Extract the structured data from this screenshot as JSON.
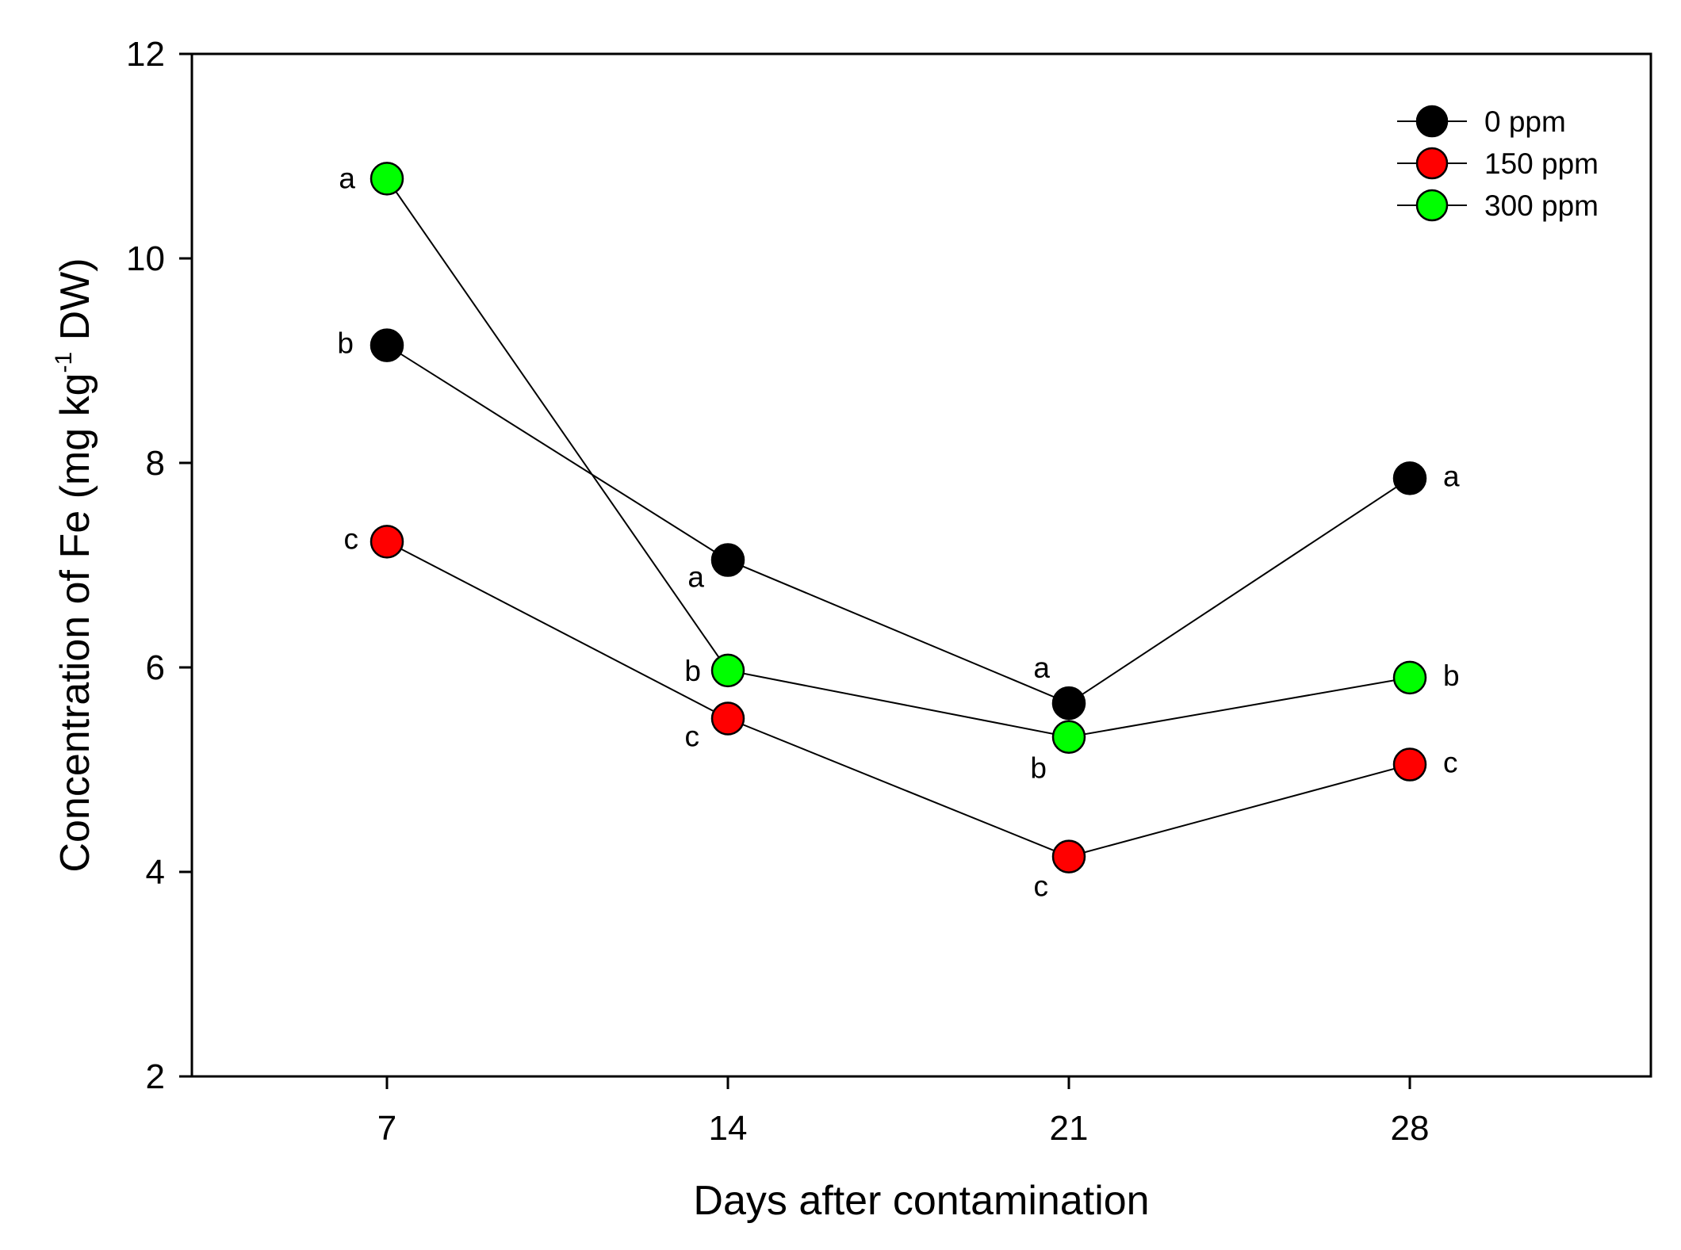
{
  "chart_data": {
    "type": "line",
    "title": "",
    "xlabel": "Days after contamination",
    "ylabel": {
      "prefix": "Concentration of Fe (mg kg",
      "superscript": "-1",
      "suffix": " DW)"
    },
    "x": [
      7,
      14,
      21,
      28
    ],
    "x_tick_labels": [
      "7",
      "14",
      "21",
      "28"
    ],
    "ylim": [
      2,
      12
    ],
    "y_ticks": [
      2,
      4,
      6,
      8,
      10,
      12
    ],
    "y_tick_labels": [
      "2",
      "4",
      "6",
      "8",
      "10",
      "12"
    ],
    "grid": false,
    "legend_position": "top-right",
    "series": [
      {
        "name": "0 ppm",
        "color": "#000000",
        "values": [
          9.15,
          7.05,
          5.65,
          7.85
        ],
        "letters": [
          "b",
          "a",
          "a",
          "a"
        ]
      },
      {
        "name": "150 ppm",
        "color": "#ff0000",
        "values": [
          7.23,
          5.5,
          4.15,
          5.05
        ],
        "letters": [
          "c",
          "c",
          "c",
          "c"
        ]
      },
      {
        "name": "300 ppm",
        "color": "#00ff00",
        "values": [
          10.78,
          5.97,
          5.32,
          5.9
        ],
        "letters": [
          "a",
          "b",
          "b",
          "b"
        ]
      }
    ]
  }
}
